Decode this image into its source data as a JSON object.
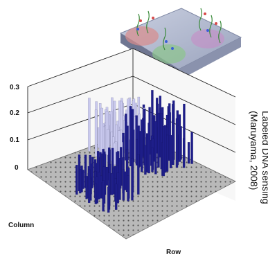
{
  "chart_data": {
    "type": "bar3d",
    "yticks": [
      "0.3",
      "0.2",
      "0.1",
      "0"
    ],
    "ylim": [
      0,
      0.3
    ],
    "xlabel": "Row",
    "zlabel": "Column",
    "series_colors": {
      "light": "#c9c9ee",
      "mid": "#8f8fd0",
      "dark": "#1e1e8a"
    },
    "clusters": [
      {
        "position": "back",
        "color": "light",
        "peak": 0.2
      },
      {
        "position": "front-left",
        "color": "dark",
        "peak": 0.16
      },
      {
        "position": "right",
        "color": "dark",
        "peak": 0.22
      }
    ]
  },
  "caption": {
    "line1": "Labeled DNA sensing",
    "line2": "(Maruyama, 2008)"
  }
}
